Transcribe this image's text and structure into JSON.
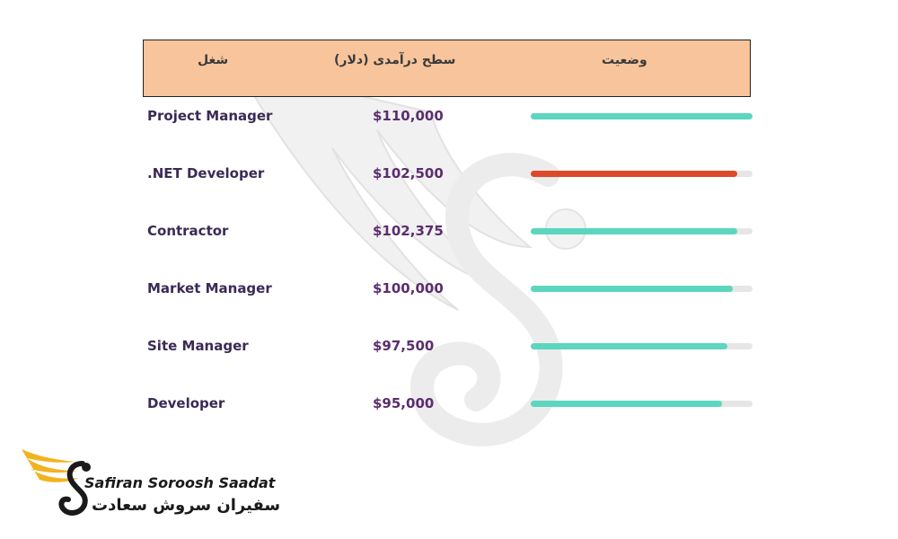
{
  "table": {
    "headers": {
      "job": "شغل",
      "salary": "سطح درآمدی (دلار)",
      "status": "وضعیت"
    }
  },
  "chart_data": {
    "type": "bar",
    "orientation": "horizontal",
    "categories": [
      "Project Manager",
      ".NET Developer",
      "Contractor",
      "Market Manager",
      "Site Manager",
      "Developer"
    ],
    "value_labels": [
      "$110,000",
      "$102,500",
      "$102,375",
      "$100,000",
      "$97,500",
      "$95,000"
    ],
    "values": [
      110000,
      102500,
      102375,
      100000,
      97500,
      95000
    ],
    "bar_fraction": [
      1.0,
      0.932,
      0.931,
      0.909,
      0.886,
      0.864
    ],
    "bar_colors": [
      "#5cd6be",
      "#db4a2b",
      "#5cd6be",
      "#5cd6be",
      "#5cd6be",
      "#5cd6be"
    ],
    "track_color": "#e6e6e6",
    "xlim": [
      0,
      110000
    ]
  },
  "colors": {
    "header_bg": "#f8c49b",
    "job_text": "#3b2a55",
    "salary_text": "#5b2d6e",
    "logo_gold": "#f2b320"
  },
  "logo": {
    "name_en": "Safiran Soroosh Saadat",
    "name_fa": "سفیران سروش سعادت"
  }
}
